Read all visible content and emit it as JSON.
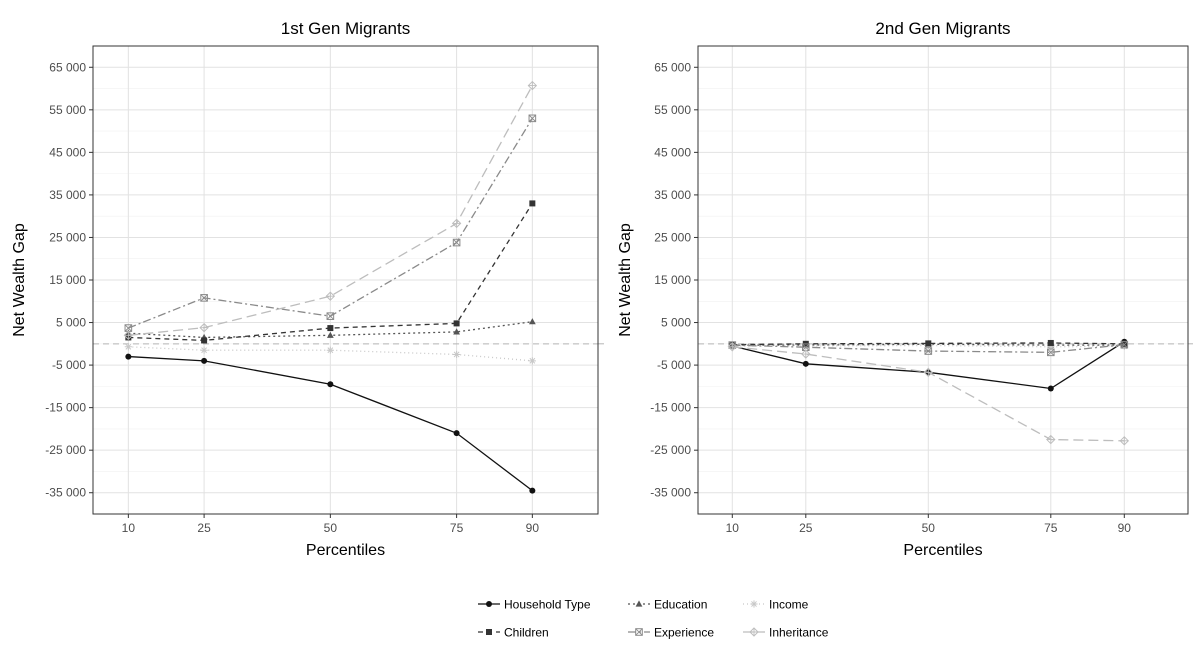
{
  "chart_data": [
    {
      "type": "line",
      "title": "1st Gen Migrants",
      "xlabel": "Percentiles",
      "ylabel": "Net Wealth Gap",
      "x": [
        10,
        25,
        50,
        75,
        90
      ],
      "x_ticks": [
        "10",
        "25",
        "50",
        "75",
        "90"
      ],
      "y_ticks": [
        "65 000",
        "55 000",
        "45 000",
        "35 000",
        "25 000",
        "15 000",
        "5 000",
        "-5 000",
        "-15 000",
        "-25 000",
        "-35 000"
      ],
      "y_tick_values": [
        65000,
        55000,
        45000,
        35000,
        25000,
        15000,
        5000,
        -5000,
        -15000,
        -25000,
        -35000
      ],
      "xlim": [
        3,
        103
      ],
      "ylim": [
        -40000,
        70000
      ],
      "reference_line_y": 0,
      "grid": true,
      "series": [
        {
          "name": "Household Type",
          "values": [
            -3000,
            -4000,
            -9500,
            -21000,
            -34500
          ],
          "color": "#111111",
          "dash": "",
          "marker": "circle"
        },
        {
          "name": "Education",
          "values": [
            2500,
            1500,
            2000,
            2800,
            5200
          ],
          "color": "#555555",
          "dash": "2,3",
          "marker": "triangle"
        },
        {
          "name": "Income",
          "values": [
            -700,
            -1500,
            -1500,
            -2500,
            -4000
          ],
          "color": "#c8c8c8",
          "dash": "1,3",
          "marker": "asterisk"
        },
        {
          "name": "Children",
          "values": [
            1500,
            800,
            3700,
            4800,
            33000
          ],
          "color": "#333333",
          "dash": "5,4",
          "marker": "square"
        },
        {
          "name": "Experience",
          "values": [
            3700,
            10800,
            6500,
            23800,
            53000
          ],
          "color": "#8a8a8a",
          "dash": "8,3,2,3",
          "marker": "square-x"
        },
        {
          "name": "Inheritance",
          "values": [
            2000,
            3800,
            11200,
            28300,
            60700
          ],
          "color": "#bdbdbd",
          "dash": "10,5",
          "marker": "diamond"
        }
      ]
    },
    {
      "type": "line",
      "title": "2nd Gen Migrants",
      "xlabel": "Percentiles",
      "ylabel": "Net Wealth Gap",
      "x": [
        10,
        25,
        50,
        75,
        90
      ],
      "x_ticks": [
        "10",
        "25",
        "50",
        "75",
        "90"
      ],
      "y_ticks": [
        "65 000",
        "55 000",
        "45 000",
        "35 000",
        "25 000",
        "15 000",
        "5 000",
        "-5 000",
        "-15 000",
        "-25 000",
        "-35 000"
      ],
      "y_tick_values": [
        65000,
        55000,
        45000,
        35000,
        25000,
        15000,
        5000,
        -5000,
        -15000,
        -25000,
        -35000
      ],
      "xlim": [
        3,
        103
      ],
      "ylim": [
        -40000,
        70000
      ],
      "reference_line_y": 0,
      "grid": true,
      "series": [
        {
          "name": "Household Type",
          "values": [
            -500,
            -4700,
            -6700,
            -10500,
            500
          ],
          "color": "#111111",
          "dash": "",
          "marker": "circle"
        },
        {
          "name": "Education",
          "values": [
            -300,
            -300,
            -100,
            -300,
            -300
          ],
          "color": "#555555",
          "dash": "2,3",
          "marker": "triangle"
        },
        {
          "name": "Income",
          "values": [
            -500,
            -500,
            -400,
            -700,
            -600
          ],
          "color": "#c8c8c8",
          "dash": "1,3",
          "marker": "asterisk"
        },
        {
          "name": "Children",
          "values": [
            -200,
            0,
            100,
            200,
            0
          ],
          "color": "#333333",
          "dash": "5,4",
          "marker": "square"
        },
        {
          "name": "Experience",
          "values": [
            -300,
            -800,
            -1700,
            -2000,
            -200
          ],
          "color": "#8a8a8a",
          "dash": "8,3,2,3",
          "marker": "square-x"
        },
        {
          "name": "Inheritance",
          "values": [
            -700,
            -2400,
            -6700,
            -22500,
            -22800
          ],
          "color": "#bdbdbd",
          "dash": "10,5",
          "marker": "diamond"
        }
      ]
    }
  ],
  "legend": {
    "placement": "bottom",
    "items": [
      {
        "name": "Household Type",
        "color": "#111111",
        "dash": "",
        "marker": "circle"
      },
      {
        "name": "Education",
        "color": "#555555",
        "dash": "2,3",
        "marker": "triangle"
      },
      {
        "name": "Income",
        "color": "#c8c8c8",
        "dash": "1,3",
        "marker": "asterisk"
      },
      {
        "name": "Children",
        "color": "#333333",
        "dash": "5,4",
        "marker": "square"
      },
      {
        "name": "Experience",
        "color": "#8a8a8a",
        "dash": "8,3,2,3",
        "marker": "square-x"
      },
      {
        "name": "Inheritance",
        "color": "#bdbdbd",
        "dash": "10,5",
        "marker": "diamond"
      }
    ]
  }
}
